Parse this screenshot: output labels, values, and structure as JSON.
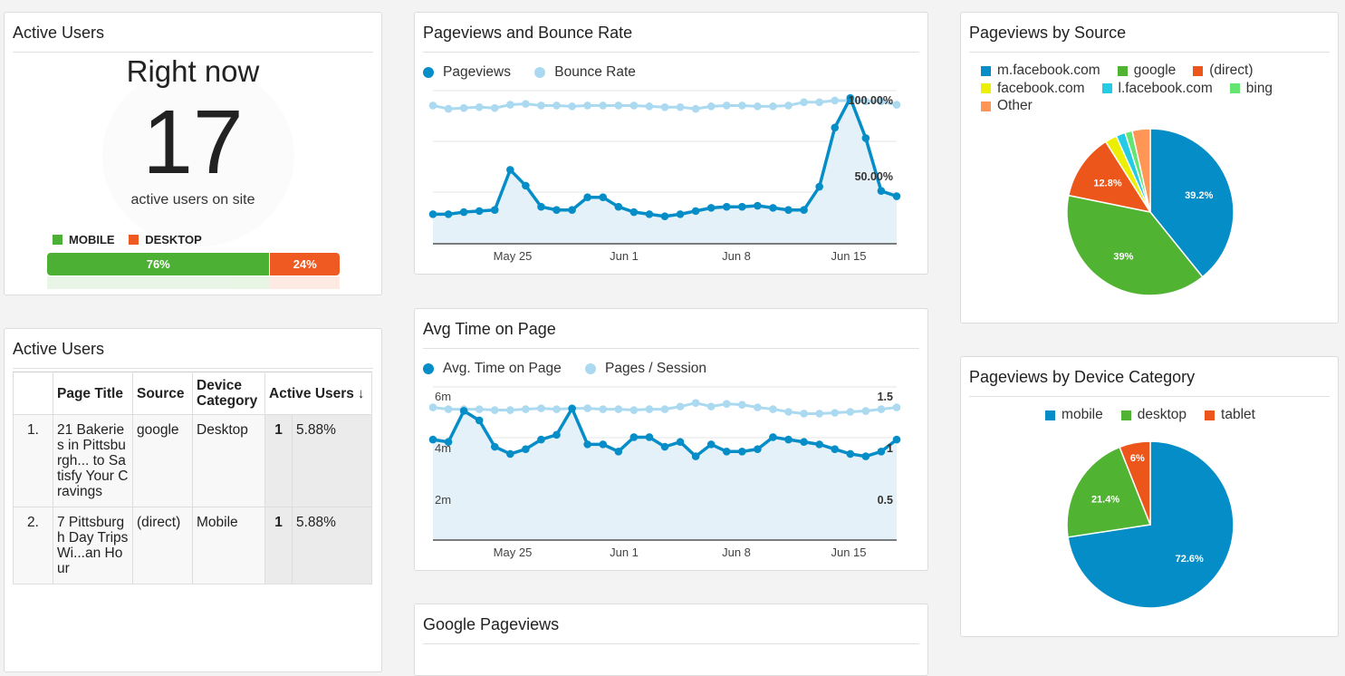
{
  "active_users_realtime": {
    "title": "Active Users",
    "heading": "Right now",
    "count": "17",
    "subtitle": "active users on site",
    "legend": [
      {
        "label": "MOBILE",
        "color": "#4cb034"
      },
      {
        "label": "DESKTOP",
        "color": "#ee5a22"
      }
    ],
    "bar": [
      {
        "label": "76%",
        "fraction": 0.76,
        "color": "#4cb034"
      },
      {
        "label": "24%",
        "fraction": 0.24,
        "color": "#ee5a22"
      }
    ]
  },
  "active_users_table": {
    "title": "Active Users",
    "columns": [
      "",
      "Page Title",
      "Source",
      "Device Category",
      "Active Users"
    ],
    "sort_icon": "arrow-down-icon",
    "rows": [
      {
        "index": "1.",
        "page_title": "21 Bakeries in Pittsburgh... to Satisfy Your Cravings",
        "source": "google",
        "device": "Desktop",
        "users": "1",
        "pct": "5.88%"
      },
      {
        "index": "2.",
        "page_title": "7 Pittsburgh Day Trips Wi...an Hour",
        "source": "(direct)",
        "device": "Mobile",
        "users": "1",
        "pct": "5.88%"
      }
    ]
  },
  "pageviews_bounce": {
    "title": "Pageviews and Bounce Rate",
    "legend": [
      {
        "label": "Pageviews",
        "color": "#058dc7"
      },
      {
        "label": "Bounce Rate",
        "color": "#aad9f0"
      }
    ],
    "x_labels": [
      "May 25",
      "Jun 1",
      "Jun 8",
      "Jun 15"
    ],
    "right_labels": [
      "100.00%",
      "50.00%"
    ]
  },
  "avg_time": {
    "title": "Avg Time on Page",
    "legend": [
      {
        "label": "Avg. Time on Page",
        "color": "#058dc7"
      },
      {
        "label": "Pages / Session",
        "color": "#aad9f0"
      }
    ],
    "x_labels": [
      "May 25",
      "Jun 1",
      "Jun 8",
      "Jun 15"
    ],
    "left_labels": [
      "6m",
      "4m",
      "2m"
    ],
    "right_labels": [
      "1.5",
      "1",
      "0.5"
    ]
  },
  "google_pageviews": {
    "title": "Google Pageviews"
  },
  "source_pie": {
    "title": "Pageviews by Source",
    "legend": [
      {
        "label": "m.facebook.com",
        "color": "#058dc7"
      },
      {
        "label": "google",
        "color": "#50b432"
      },
      {
        "label": "(direct)",
        "color": "#ed561b"
      },
      {
        "label": "facebook.com",
        "color": "#edef00"
      },
      {
        "label": "l.facebook.com",
        "color": "#24cbe5"
      },
      {
        "label": "bing",
        "color": "#64e572"
      },
      {
        "label": "Other",
        "color": "#ff9655"
      }
    ]
  },
  "device_pie": {
    "title": "Pageviews by Device Category",
    "legend": [
      {
        "label": "mobile",
        "color": "#058dc7"
      },
      {
        "label": "desktop",
        "color": "#50b432"
      },
      {
        "label": "tablet",
        "color": "#ed561b"
      }
    ]
  },
  "chart_data": [
    {
      "type": "line",
      "title": "Pageviews and Bounce Rate",
      "x_ticks": [
        "May 25",
        "Jun 1",
        "Jun 8",
        "Jun 15"
      ],
      "right_axis_ticks": [
        "100.00%",
        "50.00%"
      ],
      "series": [
        {
          "name": "Pageviews",
          "color": "#058dc7",
          "area": true,
          "values": [
            8,
            8,
            10,
            11,
            12,
            50,
            35,
            15,
            12,
            12,
            24,
            24,
            15,
            10,
            8,
            6,
            8,
            11,
            14,
            15,
            15,
            16,
            14,
            12,
            12,
            34,
            90,
            118,
            80,
            30,
            25
          ]
        },
        {
          "name": "Bounce Rate",
          "color": "#aad9f0",
          "axis": "right",
          "values": [
            92,
            88,
            89,
            90,
            89,
            93,
            94,
            92,
            92,
            91,
            92,
            92,
            92,
            92,
            91,
            90,
            90,
            88,
            91,
            92,
            92,
            91,
            91,
            92,
            96,
            96,
            98,
            98,
            97,
            97,
            93
          ]
        }
      ]
    },
    {
      "type": "line",
      "title": "Avg Time on Page",
      "x_ticks": [
        "May 25",
        "Jun 1",
        "Jun 8",
        "Jun 15"
      ],
      "left_axis_ticks": [
        "6m",
        "4m",
        "2m"
      ],
      "right_axis_ticks": [
        "1.5",
        "1",
        "0.5"
      ],
      "series": [
        {
          "name": "Avg. Time on Page",
          "color": "#058dc7",
          "area": true,
          "unit": "minutes",
          "values": [
            4.2,
            4.1,
            5.4,
            5.0,
            3.9,
            3.6,
            3.8,
            4.2,
            4.4,
            5.5,
            4.0,
            4.0,
            3.7,
            4.3,
            4.3,
            3.9,
            4.1,
            3.5,
            4.0,
            3.7,
            3.7,
            3.8,
            4.3,
            4.2,
            4.1,
            4.0,
            3.8,
            3.6,
            3.5,
            3.7,
            4.2
          ]
        },
        {
          "name": "Pages / Session",
          "color": "#aad9f0",
          "axis": "right",
          "values": [
            1.49,
            1.47,
            1.47,
            1.47,
            1.46,
            1.46,
            1.47,
            1.48,
            1.47,
            1.48,
            1.48,
            1.47,
            1.47,
            1.46,
            1.47,
            1.47,
            1.5,
            1.54,
            1.5,
            1.53,
            1.52,
            1.49,
            1.47,
            1.44,
            1.42,
            1.42,
            1.43,
            1.44,
            1.45,
            1.47,
            1.49
          ]
        }
      ]
    },
    {
      "type": "pie",
      "title": "Pageviews by Source",
      "categories": [
        "m.facebook.com",
        "google",
        "(direct)",
        "facebook.com",
        "l.facebook.com",
        "bing",
        "Other"
      ],
      "values": [
        39.2,
        39,
        12.8,
        2.3,
        1.8,
        1.4,
        3.5
      ],
      "labels": [
        "39.2%",
        "39%",
        "12.8%",
        "",
        "",
        "",
        ""
      ]
    },
    {
      "type": "pie",
      "title": "Pageviews by Device Category",
      "categories": [
        "mobile",
        "desktop",
        "tablet"
      ],
      "values": [
        72.6,
        21.4,
        6
      ],
      "labels": [
        "72.6%",
        "21.4%",
        "6%"
      ]
    }
  ]
}
